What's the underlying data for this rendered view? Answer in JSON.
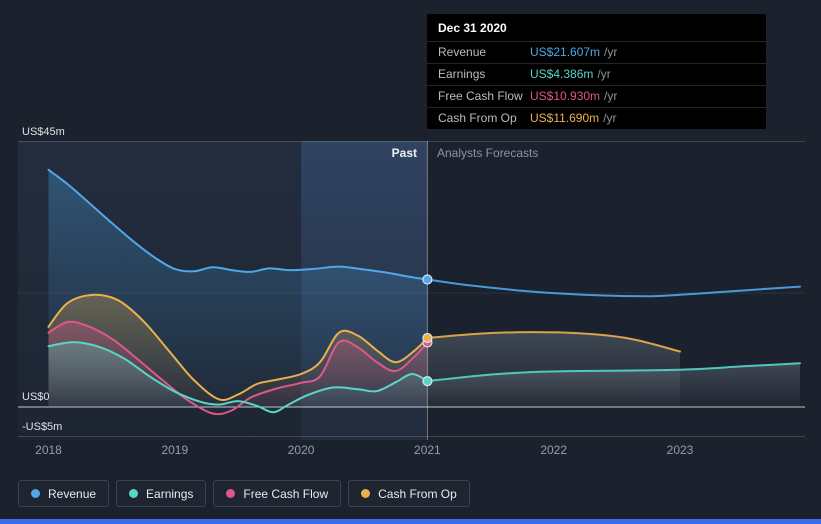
{
  "page": {
    "background": "#1b222d",
    "accent_bar_color": "#3f6af0"
  },
  "axis": {
    "y_ticks": [
      {
        "label": "US$45m",
        "value": 45
      },
      {
        "label": "US$0",
        "value": 0
      },
      {
        "label": "-US$5m",
        "value": -5
      }
    ],
    "x_ticks": [
      {
        "label": "2018",
        "year": 2018
      },
      {
        "label": "2019",
        "year": 2019
      },
      {
        "label": "2020",
        "year": 2020
      },
      {
        "label": "2021",
        "year": 2021
      },
      {
        "label": "2022",
        "year": 2022
      },
      {
        "label": "2023",
        "year": 2023
      }
    ]
  },
  "divider": {
    "past_label": "Past",
    "forecast_label": "Analysts Forecasts"
  },
  "tooltip": {
    "title": "Dec 31 2020",
    "rows": [
      {
        "label": "Revenue",
        "value": "US$21.607m",
        "unit": "/yr",
        "color": "#4ea8e9"
      },
      {
        "label": "Earnings",
        "value": "US$4.386m",
        "unit": "/yr",
        "color": "#57d6c9"
      },
      {
        "label": "Free Cash Flow",
        "value": "US$10.930m",
        "unit": "/yr",
        "color": "#e0568e"
      },
      {
        "label": "Cash From Op",
        "value": "US$11.690m",
        "unit": "/yr",
        "color": "#eab04f"
      }
    ]
  },
  "legend": {
    "items": [
      {
        "label": "Revenue",
        "color": "#4ea8e9"
      },
      {
        "label": "Earnings",
        "color": "#57d6c9"
      },
      {
        "label": "Free Cash Flow",
        "color": "#e0568e"
      },
      {
        "label": "Cash From Op",
        "color": "#eab04f"
      }
    ]
  },
  "chart_data": {
    "type": "line",
    "title": "",
    "xlabel": "",
    "ylabel": "",
    "x_range": [
      2018,
      2024
    ],
    "y_ticks": [
      45,
      0,
      -5
    ],
    "y_unit": "US$ millions",
    "grid": true,
    "legend_position": "bottom",
    "marker": {
      "date": "Dec 31 2020",
      "x": 2021
    },
    "past_region": {
      "start": 2018,
      "end": 2021
    },
    "highlight_band": {
      "start": 2020,
      "end": 2021
    },
    "series": [
      {
        "name": "Revenue",
        "color": "#4ea8e9",
        "marker_value": 21.607,
        "past": [
          [
            2018.0,
            40.2
          ],
          [
            2018.15,
            37.8
          ],
          [
            2018.3,
            35.0
          ],
          [
            2018.5,
            31.2
          ],
          [
            2018.7,
            27.6
          ],
          [
            2018.85,
            25.2
          ],
          [
            2019.0,
            23.4
          ],
          [
            2019.15,
            23.0
          ],
          [
            2019.3,
            23.7
          ],
          [
            2019.45,
            23.2
          ],
          [
            2019.6,
            22.9
          ],
          [
            2019.75,
            23.5
          ],
          [
            2019.9,
            23.2
          ],
          [
            2020.1,
            23.4
          ],
          [
            2020.3,
            23.8
          ],
          [
            2020.5,
            23.3
          ],
          [
            2020.7,
            22.7
          ],
          [
            2020.85,
            22.1
          ],
          [
            2021.0,
            21.607
          ]
        ],
        "forecast": [
          [
            2021.0,
            21.607
          ],
          [
            2021.3,
            20.7
          ],
          [
            2021.7,
            19.8
          ],
          [
            2022.0,
            19.3
          ],
          [
            2022.4,
            18.9
          ],
          [
            2022.8,
            18.8
          ],
          [
            2023.2,
            19.3
          ],
          [
            2023.6,
            19.9
          ],
          [
            2023.95,
            20.4
          ]
        ]
      },
      {
        "name": "Earnings",
        "color": "#57d6c9",
        "marker_value": 4.386,
        "past": [
          [
            2018.0,
            10.3
          ],
          [
            2018.2,
            11.0
          ],
          [
            2018.4,
            10.2
          ],
          [
            2018.6,
            8.2
          ],
          [
            2018.8,
            5.2
          ],
          [
            2019.0,
            2.6
          ],
          [
            2019.2,
            0.9
          ],
          [
            2019.35,
            0.4
          ],
          [
            2019.5,
            1.0
          ],
          [
            2019.65,
            0.2
          ],
          [
            2019.78,
            -0.9
          ],
          [
            2019.9,
            0.4
          ],
          [
            2020.05,
            2.0
          ],
          [
            2020.25,
            3.3
          ],
          [
            2020.45,
            3.0
          ],
          [
            2020.6,
            2.7
          ],
          [
            2020.75,
            4.2
          ],
          [
            2020.88,
            5.6
          ],
          [
            2021.0,
            4.386
          ]
        ],
        "forecast": [
          [
            2021.0,
            4.386
          ],
          [
            2021.4,
            5.3
          ],
          [
            2021.8,
            5.9
          ],
          [
            2022.2,
            6.1
          ],
          [
            2022.7,
            6.2
          ],
          [
            2023.1,
            6.4
          ],
          [
            2023.5,
            6.9
          ],
          [
            2023.95,
            7.4
          ]
        ]
      },
      {
        "name": "Free Cash Flow",
        "color": "#e0568e",
        "marker_value": 10.93,
        "past": [
          [
            2018.0,
            12.6
          ],
          [
            2018.15,
            14.4
          ],
          [
            2018.3,
            13.8
          ],
          [
            2018.5,
            11.6
          ],
          [
            2018.7,
            8.2
          ],
          [
            2018.9,
            4.6
          ],
          [
            2019.1,
            1.2
          ],
          [
            2019.3,
            -1.1
          ],
          [
            2019.45,
            -0.6
          ],
          [
            2019.6,
            1.6
          ],
          [
            2019.8,
            3.1
          ],
          [
            2020.0,
            4.1
          ],
          [
            2020.15,
            5.2
          ],
          [
            2020.3,
            11.0
          ],
          [
            2020.45,
            10.1
          ],
          [
            2020.6,
            7.6
          ],
          [
            2020.75,
            6.1
          ],
          [
            2020.9,
            8.6
          ],
          [
            2021.0,
            10.93
          ]
        ],
        "forecast": []
      },
      {
        "name": "Cash From Op",
        "color": "#eab04f",
        "marker_value": 11.69,
        "past": [
          [
            2018.0,
            13.6
          ],
          [
            2018.15,
            17.6
          ],
          [
            2018.35,
            19.0
          ],
          [
            2018.55,
            18.1
          ],
          [
            2018.75,
            14.6
          ],
          [
            2018.95,
            9.6
          ],
          [
            2019.15,
            4.6
          ],
          [
            2019.35,
            1.3
          ],
          [
            2019.5,
            2.1
          ],
          [
            2019.65,
            3.9
          ],
          [
            2019.8,
            4.6
          ],
          [
            2020.0,
            5.6
          ],
          [
            2020.15,
            7.6
          ],
          [
            2020.3,
            12.6
          ],
          [
            2020.45,
            12.1
          ],
          [
            2020.6,
            9.6
          ],
          [
            2020.75,
            7.6
          ],
          [
            2020.9,
            9.6
          ],
          [
            2021.0,
            11.69
          ]
        ],
        "forecast": [
          [
            2021.0,
            11.69
          ],
          [
            2021.4,
            12.4
          ],
          [
            2021.8,
            12.7
          ],
          [
            2022.2,
            12.5
          ],
          [
            2022.6,
            11.6
          ],
          [
            2023.0,
            9.4
          ]
        ]
      }
    ]
  }
}
